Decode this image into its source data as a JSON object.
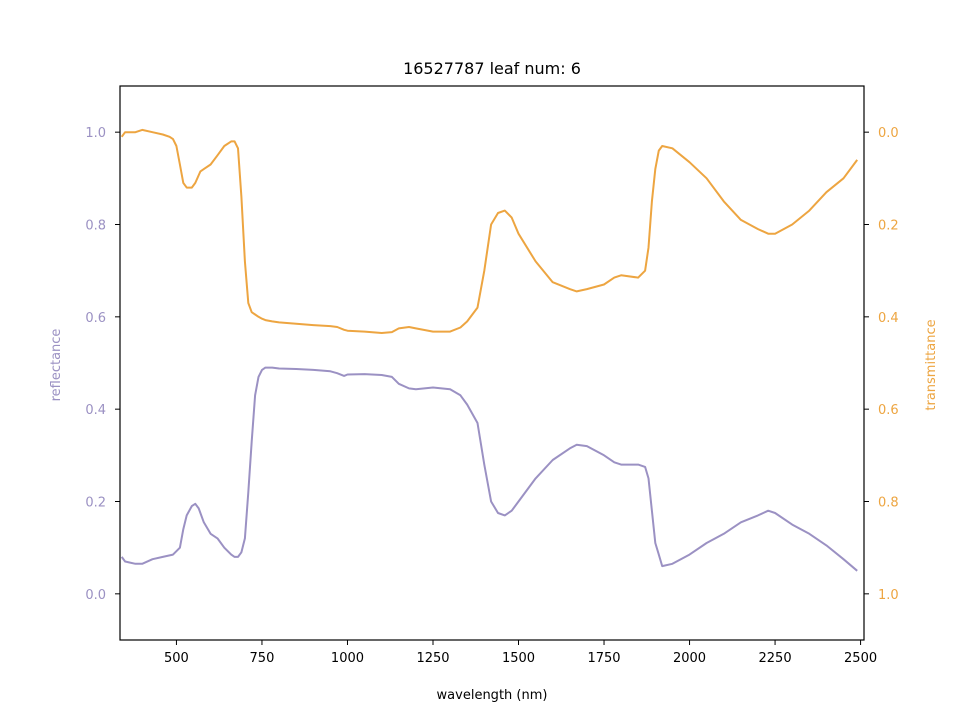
{
  "chart_data": {
    "type": "line",
    "title": "16527787 leaf num: 6",
    "xlabel": "wavelength (nm)",
    "xlim": [
      335,
      2510
    ],
    "xticks": [
      500,
      750,
      1000,
      1250,
      1500,
      1750,
      2000,
      2250,
      2500
    ],
    "grid": false,
    "axes": {
      "left": {
        "label": "reflectance",
        "color": "#9b91c3",
        "ylim": [
          -0.1,
          1.1
        ],
        "inverted": false,
        "ticks": [
          0.0,
          0.2,
          0.4,
          0.6,
          0.8,
          1.0
        ]
      },
      "right": {
        "label": "transmittance",
        "color": "#eda541",
        "ylim": [
          -0.1,
          1.1
        ],
        "inverted": true,
        "ticks": [
          0.0,
          0.2,
          0.4,
          0.6,
          0.8,
          1.0
        ]
      }
    },
    "series": [
      {
        "axis": "left",
        "color": "#9b91c3",
        "x": [
          340,
          350,
          380,
          400,
          430,
          460,
          490,
          510,
          520,
          530,
          545,
          555,
          565,
          580,
          600,
          620,
          640,
          660,
          670,
          680,
          690,
          700,
          710,
          720,
          730,
          740,
          750,
          760,
          780,
          800,
          850,
          900,
          950,
          970,
          990,
          1000,
          1050,
          1100,
          1130,
          1150,
          1180,
          1200,
          1250,
          1300,
          1330,
          1350,
          1380,
          1400,
          1420,
          1440,
          1460,
          1480,
          1500,
          1550,
          1600,
          1650,
          1670,
          1700,
          1750,
          1780,
          1800,
          1850,
          1870,
          1880,
          1890,
          1900,
          1910,
          1920,
          1950,
          2000,
          2050,
          2100,
          2150,
          2200,
          2230,
          2250,
          2300,
          2350,
          2400,
          2450,
          2490
        ],
        "values": [
          0.08,
          0.07,
          0.065,
          0.065,
          0.075,
          0.08,
          0.085,
          0.1,
          0.14,
          0.17,
          0.19,
          0.195,
          0.185,
          0.155,
          0.13,
          0.12,
          0.1,
          0.085,
          0.08,
          0.08,
          0.09,
          0.12,
          0.22,
          0.33,
          0.43,
          0.47,
          0.485,
          0.49,
          0.49,
          0.488,
          0.487,
          0.485,
          0.482,
          0.478,
          0.472,
          0.475,
          0.476,
          0.474,
          0.47,
          0.455,
          0.445,
          0.443,
          0.447,
          0.443,
          0.43,
          0.41,
          0.37,
          0.28,
          0.2,
          0.175,
          0.17,
          0.18,
          0.2,
          0.25,
          0.29,
          0.315,
          0.323,
          0.32,
          0.3,
          0.285,
          0.28,
          0.28,
          0.275,
          0.25,
          0.18,
          0.11,
          0.085,
          0.06,
          0.065,
          0.085,
          0.11,
          0.13,
          0.155,
          0.17,
          0.18,
          0.175,
          0.15,
          0.13,
          0.105,
          0.075,
          0.05
        ]
      },
      {
        "axis": "right",
        "color": "#eda541",
        "x": [
          340,
          350,
          380,
          400,
          430,
          460,
          480,
          490,
          500,
          510,
          520,
          530,
          545,
          555,
          570,
          580,
          600,
          620,
          640,
          660,
          670,
          680,
          690,
          700,
          710,
          720,
          730,
          740,
          750,
          760,
          780,
          800,
          850,
          900,
          950,
          970,
          990,
          1000,
          1050,
          1100,
          1130,
          1150,
          1180,
          1200,
          1250,
          1300,
          1330,
          1350,
          1380,
          1400,
          1420,
          1440,
          1460,
          1480,
          1500,
          1550,
          1600,
          1650,
          1670,
          1700,
          1750,
          1780,
          1800,
          1850,
          1870,
          1880,
          1890,
          1900,
          1910,
          1920,
          1950,
          2000,
          2050,
          2100,
          2150,
          2200,
          2230,
          2250,
          2300,
          2350,
          2400,
          2450,
          2490
        ],
        "values": [
          0.01,
          0.0,
          0.0,
          -0.005,
          0.0,
          0.005,
          0.01,
          0.015,
          0.03,
          0.07,
          0.11,
          0.12,
          0.12,
          0.11,
          0.085,
          0.08,
          0.07,
          0.05,
          0.03,
          0.02,
          0.02,
          0.035,
          0.14,
          0.28,
          0.37,
          0.39,
          0.395,
          0.4,
          0.404,
          0.407,
          0.41,
          0.412,
          0.415,
          0.418,
          0.42,
          0.422,
          0.428,
          0.43,
          0.432,
          0.435,
          0.433,
          0.425,
          0.422,
          0.425,
          0.432,
          0.432,
          0.423,
          0.41,
          0.38,
          0.3,
          0.2,
          0.175,
          0.17,
          0.185,
          0.22,
          0.28,
          0.325,
          0.34,
          0.345,
          0.34,
          0.33,
          0.315,
          0.31,
          0.315,
          0.3,
          0.25,
          0.15,
          0.08,
          0.04,
          0.03,
          0.035,
          0.065,
          0.1,
          0.15,
          0.19,
          0.21,
          0.22,
          0.22,
          0.2,
          0.17,
          0.13,
          0.1,
          0.06
        ]
      }
    ]
  }
}
